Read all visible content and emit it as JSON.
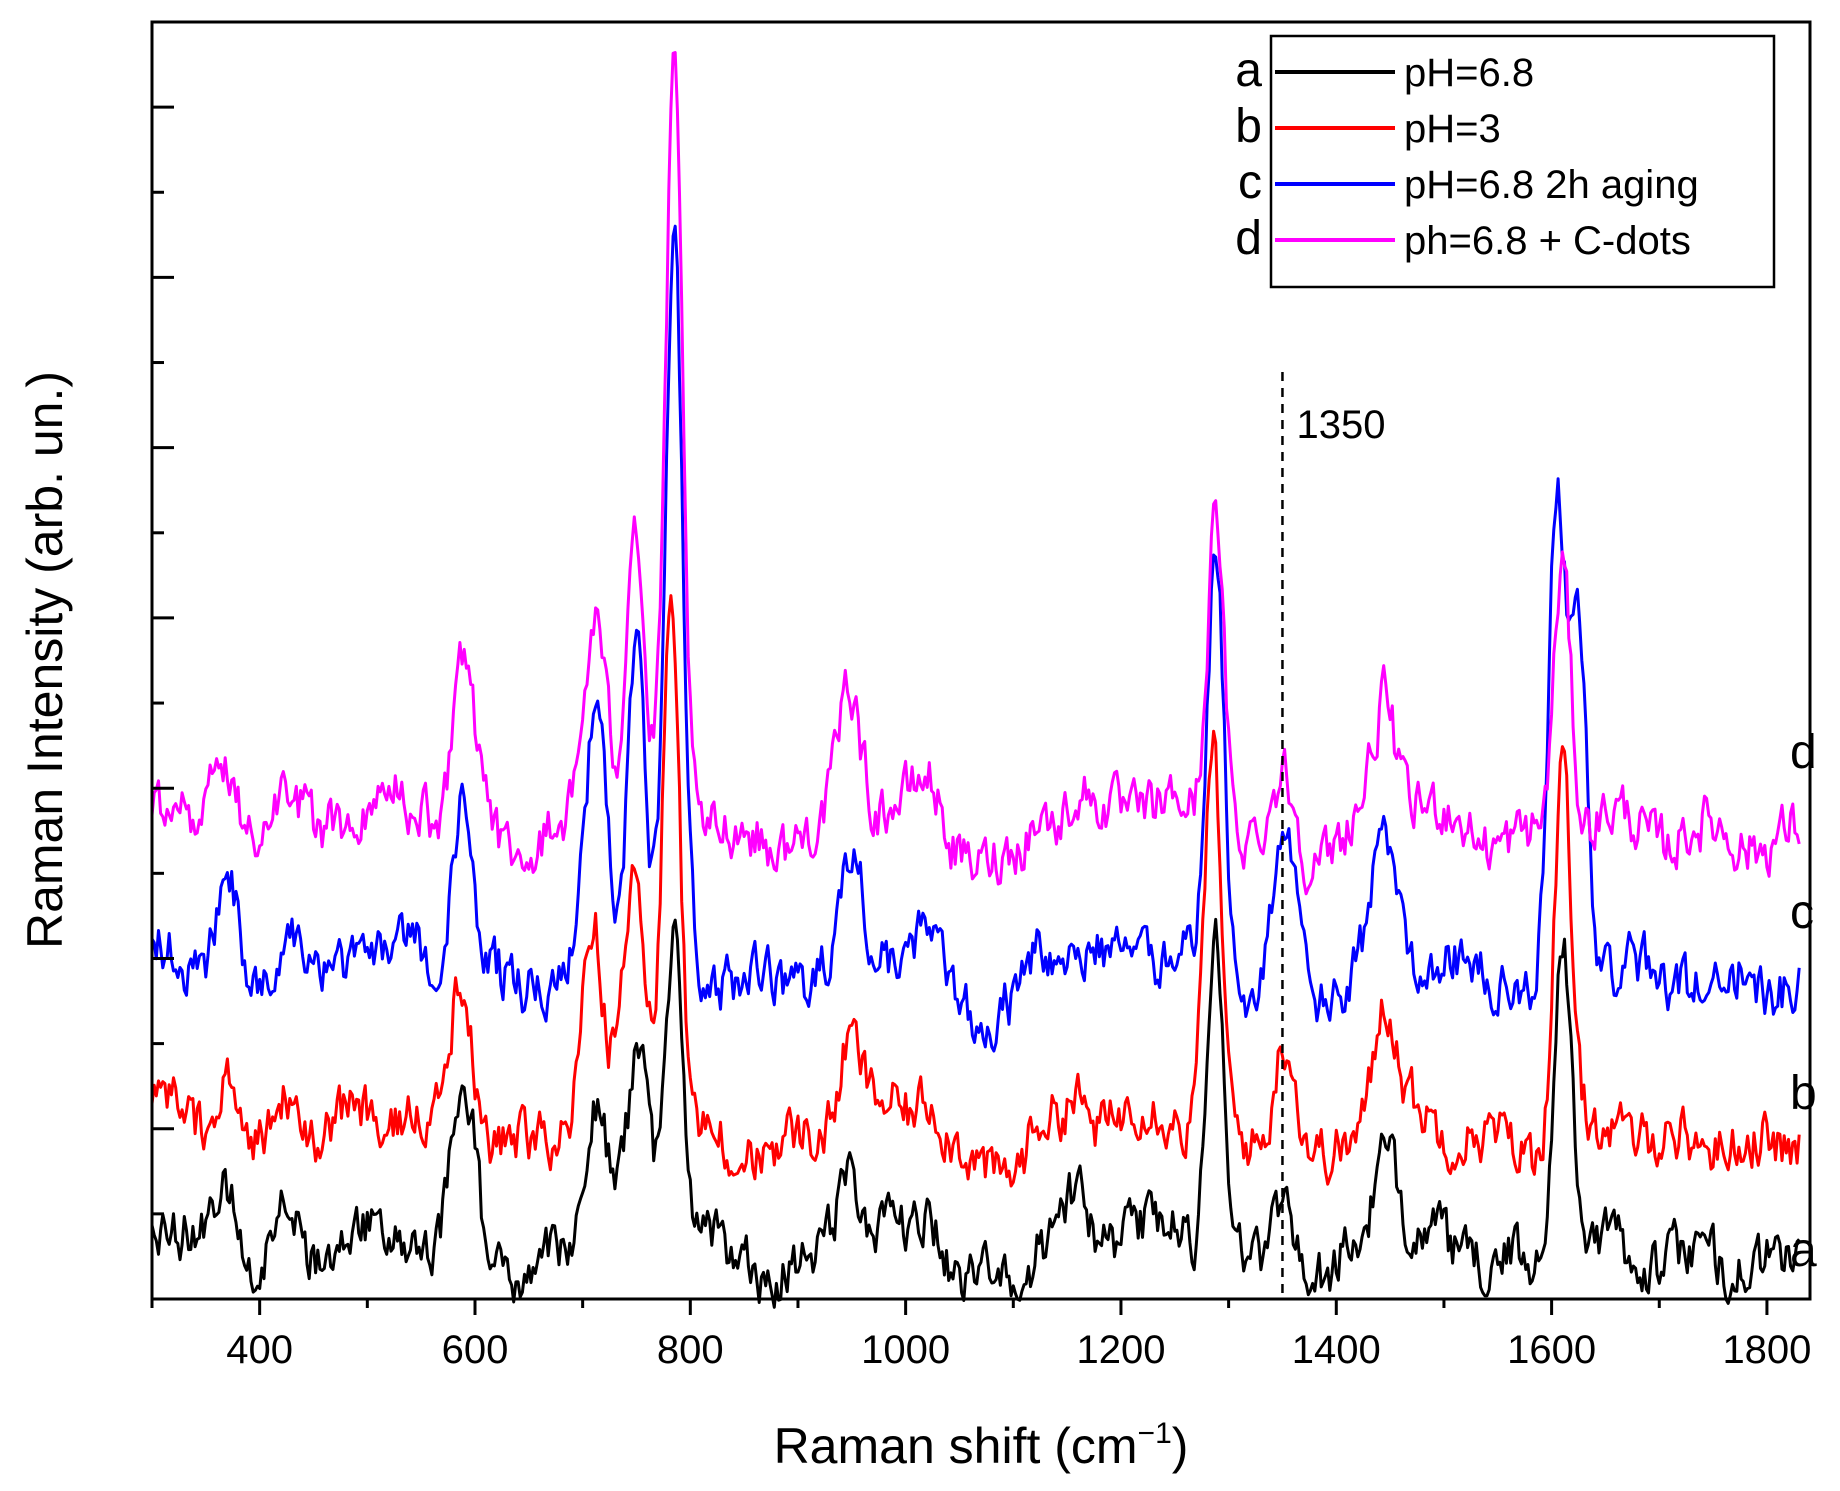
{
  "chart_data": {
    "type": "line",
    "title": "",
    "xlabel": "Raman shift",
    "xlabel_unit_base": "(cm",
    "xlabel_unit_sup": "−1",
    "xlabel_unit_close": ")",
    "ylabel": "Raman Intensity   (arb. un.)",
    "xlim": [
      300,
      1840
    ],
    "ylim": [
      0,
      15
    ],
    "x_ticks": [
      400,
      600,
      800,
      1000,
      1200,
      1400,
      1600,
      1800
    ],
    "y_ticks_shown": false,
    "legend_position": "top-right",
    "reference_line": {
      "x": 1350,
      "label": "1350",
      "style": "dashed"
    },
    "series": [
      {
        "id": "a",
        "name": "pH=6.8",
        "color": "#000000",
        "offset": 0.6,
        "peaks": [
          [
            370,
            0.9
          ],
          [
            425,
            0.8
          ],
          [
            590,
            2.0
          ],
          [
            712,
            1.8
          ],
          [
            752,
            2.0
          ],
          [
            785,
            3.7
          ],
          [
            948,
            0.9
          ],
          [
            1022,
            0.3
          ],
          [
            1125,
            0.3
          ],
          [
            1157,
            0.6
          ],
          [
            1288,
            3.9
          ],
          [
            1352,
            1.0
          ],
          [
            1445,
            1.0
          ],
          [
            1610,
            4.0
          ]
        ]
      },
      {
        "id": "b",
        "name": "pH=3",
        "color": "#ff0000",
        "offset": 2.0,
        "peaks": [
          [
            370,
            0.7
          ],
          [
            425,
            0.6
          ],
          [
            588,
            1.9
          ],
          [
            708,
            2.5
          ],
          [
            748,
            2.8
          ],
          [
            782,
            6.0
          ],
          [
            948,
            1.0
          ],
          [
            1022,
            0.4
          ],
          [
            1125,
            0.3
          ],
          [
            1157,
            0.4
          ],
          [
            1285,
            4.5
          ],
          [
            1352,
            1.4
          ],
          [
            1445,
            1.3
          ],
          [
            1610,
            4.3
          ]
        ]
      },
      {
        "id": "c",
        "name": "pH=6.8  2h aging",
        "color": "#0000ff",
        "offset": 3.9,
        "peaks": [
          [
            370,
            1.0
          ],
          [
            425,
            0.8
          ],
          [
            588,
            2.0
          ],
          [
            712,
            2.8
          ],
          [
            750,
            3.8
          ],
          [
            785,
            8.3
          ],
          [
            948,
            1.2
          ],
          [
            1022,
            0.5
          ],
          [
            1125,
            0.4
          ],
          [
            1157,
            0.5
          ],
          [
            1288,
            4.8
          ],
          [
            1352,
            1.9
          ],
          [
            1445,
            1.3
          ],
          [
            1605,
            5.5
          ],
          [
            1625,
            4.0
          ]
        ]
      },
      {
        "id": "d",
        "name": "ph=6.8 + C-dots",
        "color": "#ff00ff",
        "offset": 5.6,
        "peaks": [
          [
            370,
            0.8
          ],
          [
            425,
            0.6
          ],
          [
            590,
            2.0
          ],
          [
            712,
            2.4
          ],
          [
            748,
            3.4
          ],
          [
            785,
            8.6
          ],
          [
            948,
            1.5
          ],
          [
            1022,
            0.4
          ],
          [
            1125,
            0.4
          ],
          [
            1157,
            0.3
          ],
          [
            1288,
            3.7
          ],
          [
            1352,
            0.8
          ],
          [
            1445,
            1.3
          ],
          [
            1610,
            3.2
          ]
        ]
      }
    ]
  }
}
